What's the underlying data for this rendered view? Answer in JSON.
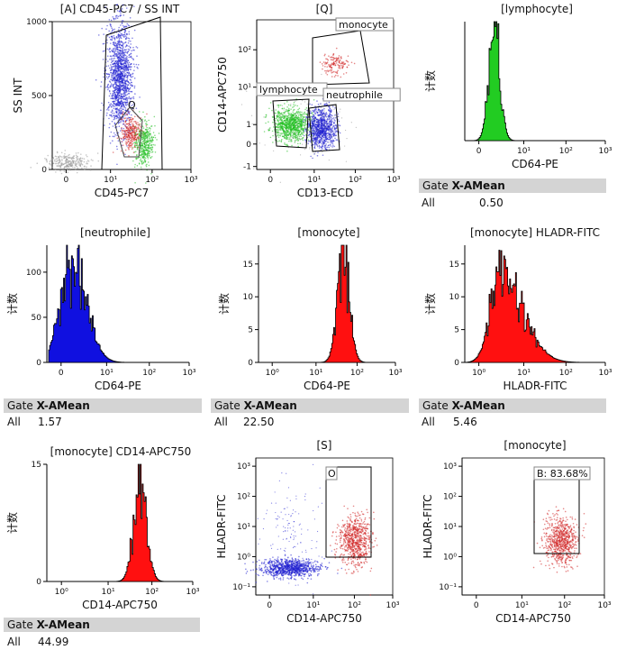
{
  "chart_data": [
    {
      "id": "A",
      "type": "scatter",
      "title": "[A] CD45-PC7 / SS INT",
      "xlabel": "CD45-PC7",
      "ylabel": "SS INT",
      "x_scale": "biexponential",
      "y_scale": "linear",
      "x_ticks": [
        "0",
        "10¹",
        "10²",
        "10³"
      ],
      "y_ticks": [
        "0",
        "500",
        "1000"
      ],
      "ylim": [
        0,
        1000
      ],
      "gates": [
        {
          "name": "Q",
          "type": "polygon"
        }
      ],
      "populations": [
        {
          "color": "#1f1fd0",
          "x_center": 10,
          "y_center": 600
        },
        {
          "color": "#d02020",
          "x_center": 30,
          "y_center": 230
        },
        {
          "color": "#20c020",
          "x_center": 55,
          "y_center": 170
        },
        {
          "color": "#999999",
          "x_center": 0.3,
          "y_center": 60
        }
      ]
    },
    {
      "id": "Q",
      "type": "scatter",
      "title": "[Q]",
      "xlabel": "CD13-ECD",
      "ylabel": "CD14-APC750",
      "x_scale": "biexponential",
      "y_scale": "biexponential",
      "x_ticks": [
        "0",
        "10¹",
        "10²",
        "10³"
      ],
      "y_ticks": [
        "-1",
        "0",
        "1",
        "10¹",
        "10²"
      ],
      "gates": [
        {
          "name": "monocyte"
        },
        {
          "name": "lymphocyte"
        },
        {
          "name": "neutrophile"
        }
      ],
      "populations": [
        {
          "gate": "monocyte",
          "color": "#d02020",
          "x_center": 50,
          "y_center": 30
        },
        {
          "gate": "lymphocyte",
          "color": "#20c020",
          "x_center": 0.5,
          "y_center": 1.5
        },
        {
          "gate": "neutrophile",
          "color": "#1f1fd0",
          "x_center": 8,
          "y_center": 1.2
        }
      ]
    },
    {
      "id": "lymph_cd64",
      "type": "histogram",
      "title": "[lymphocyte]",
      "xlabel": "CD64-PE",
      "ylabel": "计数",
      "color": "#22cc22",
      "x_ticks": [
        "0",
        "10¹",
        "10²",
        "10³"
      ],
      "y_ticks": [],
      "peak_x": 1.2,
      "stats": {
        "gate": "Gate",
        "stat_name": "X-AMean",
        "row_label": "All",
        "value": "0.50"
      }
    },
    {
      "id": "neut_cd64",
      "type": "histogram",
      "title": "[neutrophile]",
      "xlabel": "CD64-PE",
      "ylabel": "计数",
      "color": "#1010e0",
      "x_ticks": [
        "0",
        "10¹",
        "10²",
        "10³"
      ],
      "y_ticks": [
        "0",
        "50",
        "100"
      ],
      "ylim": [
        0,
        130
      ],
      "peak_x": 2,
      "peak_count": 118,
      "stats": {
        "gate": "Gate",
        "stat_name": "X-AMean",
        "row_label": "All",
        "value": "1.57"
      }
    },
    {
      "id": "mono_cd64",
      "type": "histogram",
      "title": "[monocyte]",
      "xlabel": "CD64-PE",
      "ylabel": "计数",
      "color": "#ff1010",
      "x_ticks": [
        "10⁰",
        "10¹",
        "10²",
        "10³"
      ],
      "y_ticks": [
        "0",
        "5",
        "10",
        "15"
      ],
      "ylim": [
        0,
        18
      ],
      "peak_x": 20,
      "peak_count": 17,
      "stats": {
        "gate": "Gate",
        "stat_name": "X-AMean",
        "row_label": "All",
        "value": "22.50"
      }
    },
    {
      "id": "mono_hladr",
      "type": "histogram",
      "title": "[monocyte] HLADR-FITC",
      "xlabel": "HLADR-FITC",
      "ylabel": "计数",
      "color": "#ff1010",
      "x_ticks": [
        "10⁰",
        "10¹",
        "10²",
        "10³"
      ],
      "y_ticks": [
        "0",
        "5",
        "10",
        "15"
      ],
      "ylim": [
        0,
        18
      ],
      "peak_x": 3.5,
      "peak_count": 16,
      "stats": {
        "gate": "Gate",
        "stat_name": "X-AMean",
        "row_label": "All",
        "value": "5.46"
      }
    },
    {
      "id": "mono_cd14",
      "type": "histogram",
      "title": "[monocyte] CD14-APC750",
      "xlabel": "CD14-APC750",
      "ylabel": "计数",
      "color": "#ff1010",
      "x_ticks": [
        "10⁰",
        "10¹",
        "10²",
        "10³"
      ],
      "y_ticks": [
        "0",
        "15"
      ],
      "ylim": [
        0,
        18
      ],
      "peak_x": 40,
      "peak_count": 16,
      "stats": {
        "gate": "Gate",
        "stat_name": "X-AMean",
        "row_label": "All",
        "value": "44.99"
      }
    },
    {
      "id": "S",
      "type": "scatter",
      "title": "[S]",
      "xlabel": "CD14-APC750",
      "ylabel": "HLADR-FITC",
      "x_ticks": [
        "0",
        "10¹",
        "10²",
        "10³"
      ],
      "y_ticks": [
        "10⁻¹",
        "10⁰",
        "10¹",
        "10²",
        "10³"
      ],
      "gates": [
        {
          "name": "O",
          "type": "rectangle"
        }
      ],
      "populations": [
        {
          "color": "#1f1fd0",
          "x_center": 1,
          "y_center": 0.6
        },
        {
          "color": "#d02020",
          "x_center": 45,
          "y_center": 3
        }
      ]
    },
    {
      "id": "mono_S",
      "type": "scatter",
      "title": "[monocyte]",
      "xlabel": "CD14-APC750",
      "ylabel": "HLADR-FITC",
      "x_ticks": [
        "0",
        "10¹",
        "10²",
        "10³"
      ],
      "y_ticks": [
        "10⁻¹",
        "10⁰",
        "10¹",
        "10²",
        "10³"
      ],
      "gates": [
        {
          "name": "B",
          "type": "rectangle",
          "label": "B: 83.68%"
        }
      ],
      "populations": [
        {
          "color": "#d02020",
          "x_center": 45,
          "y_center": 3
        }
      ]
    }
  ]
}
